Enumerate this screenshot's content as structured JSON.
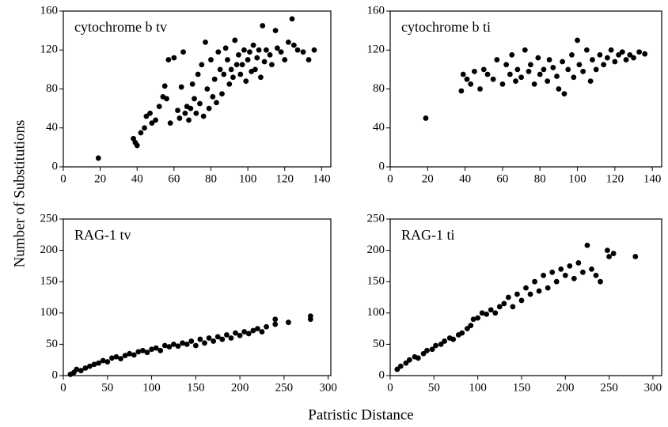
{
  "xlabel": "Patristic Distance",
  "ylabel": "Number of Substitutions",
  "chart_data": [
    {
      "type": "scatter",
      "title": "cytochrome b tv",
      "color": "#000000",
      "xlim": [
        0,
        145
      ],
      "ylim": [
        0,
        160
      ],
      "xticks": [
        0,
        20,
        40,
        60,
        80,
        100,
        120,
        140
      ],
      "yticks": [
        0,
        40,
        80,
        120,
        160
      ],
      "x": [
        19,
        38,
        39,
        40,
        42,
        44,
        45,
        47,
        48,
        50,
        52,
        54,
        55,
        56,
        57,
        58,
        60,
        62,
        63,
        64,
        65,
        66,
        67,
        68,
        69,
        70,
        71,
        72,
        73,
        74,
        75,
        76,
        77,
        78,
        79,
        80,
        81,
        82,
        83,
        84,
        85,
        86,
        87,
        88,
        89,
        90,
        91,
        92,
        93,
        94,
        95,
        96,
        97,
        98,
        99,
        100,
        101,
        102,
        103,
        104,
        105,
        106,
        107,
        108,
        109,
        110,
        112,
        113,
        115,
        116,
        118,
        120,
        122,
        124,
        125,
        127,
        130,
        133,
        136
      ],
      "values": [
        9,
        29,
        25,
        22,
        35,
        40,
        52,
        55,
        45,
        48,
        62,
        72,
        83,
        70,
        110,
        45,
        112,
        58,
        50,
        82,
        118,
        55,
        62,
        48,
        60,
        85,
        70,
        55,
        95,
        65,
        105,
        52,
        128,
        80,
        60,
        110,
        72,
        90,
        66,
        118,
        100,
        75,
        95,
        122,
        110,
        85,
        100,
        92,
        130,
        105,
        115,
        95,
        105,
        120,
        88,
        110,
        118,
        98,
        125,
        100,
        112,
        120,
        92,
        145,
        108,
        120,
        115,
        105,
        140,
        122,
        118,
        110,
        128,
        152,
        125,
        120,
        118,
        110,
        120
      ]
    },
    {
      "type": "scatter",
      "title": "cytochrome b ti",
      "color": "#000000",
      "xlim": [
        0,
        145
      ],
      "ylim": [
        0,
        160
      ],
      "xticks": [
        0,
        20,
        40,
        60,
        80,
        100,
        120,
        140
      ],
      "yticks": [
        0,
        40,
        80,
        120,
        160
      ],
      "x": [
        19,
        38,
        39,
        41,
        43,
        45,
        48,
        50,
        52,
        55,
        57,
        60,
        62,
        64,
        65,
        67,
        68,
        70,
        72,
        74,
        75,
        77,
        79,
        80,
        82,
        84,
        85,
        87,
        89,
        90,
        92,
        93,
        95,
        97,
        98,
        100,
        101,
        103,
        105,
        107,
        108,
        110,
        112,
        114,
        116,
        118,
        120,
        122,
        124,
        126,
        128,
        130,
        133,
        136
      ],
      "values": [
        50,
        78,
        95,
        90,
        85,
        98,
        80,
        100,
        95,
        90,
        110,
        85,
        105,
        95,
        115,
        88,
        100,
        92,
        120,
        98,
        105,
        85,
        112,
        95,
        100,
        88,
        110,
        102,
        93,
        80,
        108,
        75,
        100,
        115,
        92,
        130,
        105,
        98,
        120,
        88,
        110,
        100,
        115,
        105,
        112,
        120,
        108,
        115,
        118,
        110,
        115,
        112,
        118,
        116
      ]
    },
    {
      "type": "scatter",
      "title": "RAG-1 tv",
      "color": "#000000",
      "xlim": [
        0,
        303
      ],
      "ylim": [
        0,
        250
      ],
      "xticks": [
        0,
        50,
        100,
        150,
        200,
        250,
        300
      ],
      "yticks": [
        0,
        50,
        100,
        150,
        200,
        250
      ],
      "x": [
        8,
        12,
        15,
        20,
        25,
        30,
        35,
        40,
        45,
        50,
        55,
        60,
        65,
        70,
        75,
        80,
        85,
        90,
        95,
        100,
        105,
        110,
        115,
        120,
        125,
        130,
        135,
        140,
        145,
        150,
        155,
        160,
        165,
        170,
        175,
        180,
        185,
        190,
        195,
        200,
        205,
        210,
        215,
        220,
        225,
        230,
        240,
        240,
        255,
        280,
        280
      ],
      "values": [
        2,
        5,
        10,
        8,
        12,
        15,
        18,
        20,
        24,
        22,
        28,
        30,
        27,
        32,
        35,
        33,
        38,
        40,
        37,
        42,
        44,
        40,
        48,
        46,
        50,
        47,
        52,
        50,
        55,
        48,
        58,
        52,
        60,
        55,
        62,
        58,
        65,
        60,
        68,
        64,
        70,
        67,
        72,
        75,
        70,
        78,
        90,
        82,
        85,
        95,
        90
      ]
    },
    {
      "type": "scatter",
      "title": "RAG-1 ti",
      "color": "#000000",
      "xlim": [
        0,
        310
      ],
      "ylim": [
        0,
        250
      ],
      "xticks": [
        0,
        50,
        100,
        150,
        200,
        250,
        300
      ],
      "yticks": [
        0,
        50,
        100,
        150,
        200,
        250
      ],
      "x": [
        8,
        12,
        18,
        22,
        28,
        32,
        38,
        42,
        48,
        52,
        58,
        62,
        68,
        72,
        78,
        82,
        88,
        92,
        95,
        100,
        105,
        110,
        115,
        120,
        125,
        130,
        135,
        140,
        145,
        150,
        155,
        160,
        165,
        170,
        175,
        180,
        185,
        190,
        195,
        200,
        205,
        210,
        215,
        220,
        225,
        230,
        235,
        240,
        248,
        250,
        255,
        280
      ],
      "values": [
        10,
        15,
        20,
        25,
        30,
        28,
        35,
        40,
        42,
        48,
        50,
        55,
        60,
        58,
        65,
        68,
        75,
        80,
        90,
        92,
        100,
        98,
        105,
        100,
        110,
        115,
        125,
        110,
        130,
        120,
        140,
        130,
        150,
        135,
        160,
        140,
        165,
        150,
        170,
        160,
        175,
        155,
        180,
        165,
        208,
        170,
        160,
        150,
        200,
        190,
        195,
        190
      ]
    }
  ]
}
